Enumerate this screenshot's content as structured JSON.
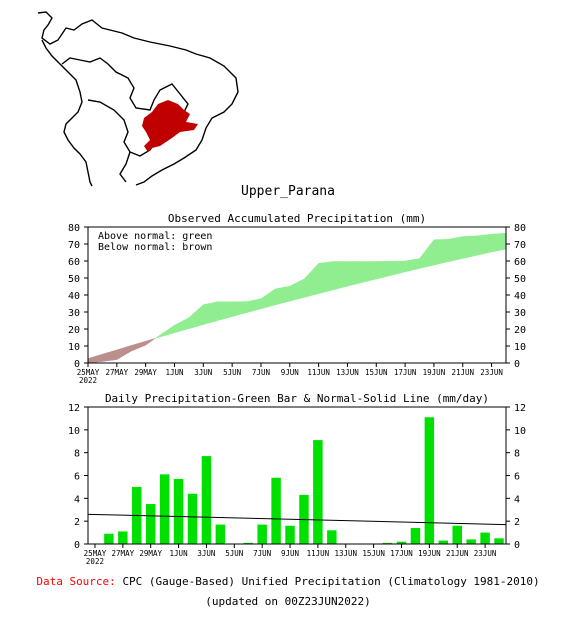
{
  "region_title": "Upper_Parana",
  "colors": {
    "above": "#90ee90",
    "below": "#bc8f8f",
    "bar": "#00e000",
    "map_region": "#c00000",
    "normal_line": "#000000"
  },
  "footer": {
    "source_label": "Data Source:",
    "source_text": "CPC (Gauge-Based) Unified Precipitation (Climatology 1981-2010)",
    "updated": "(updated on 00Z23JUN2022)"
  },
  "chart_data": [
    {
      "type": "area",
      "title": "Observed Accumulated Precipitation (mm)",
      "legend": [
        "Above normal: green",
        "Below normal: brown"
      ],
      "ylim": [
        0,
        80
      ],
      "yticks": [
        0,
        10,
        20,
        30,
        40,
        50,
        60,
        70,
        80
      ],
      "xticks": [
        "25MAY",
        "27MAY",
        "29MAY",
        "1JUN",
        "3JUN",
        "5JUN",
        "7JUN",
        "9JUN",
        "11JUN",
        "13JUN",
        "15JUN",
        "17JUN",
        "19JUN",
        "21JUN",
        "23JUN"
      ],
      "xtick_year": "2022",
      "dates": [
        "25MAY",
        "26MAY",
        "27MAY",
        "28MAY",
        "29MAY",
        "30MAY",
        "31MAY",
        "1JUN",
        "2JUN",
        "3JUN",
        "4JUN",
        "5JUN",
        "6JUN",
        "7JUN",
        "8JUN",
        "9JUN",
        "10JUN",
        "11JUN",
        "12JUN",
        "13JUN",
        "14JUN",
        "15JUN",
        "16JUN",
        "17JUN",
        "18JUN",
        "19JUN",
        "20JUN",
        "21JUN",
        "22JUN",
        "23JUN"
      ],
      "observed": [
        0,
        0.9,
        2.0,
        7.0,
        10.5,
        16.5,
        22.2,
        26.6,
        34.3,
        36.0,
        36.0,
        36.1,
        37.8,
        43.6,
        45.2,
        49.5,
        58.6,
        59.7,
        59.7,
        59.7,
        59.7,
        59.8,
        60.0,
        61.4,
        72.5,
        72.8,
        74.4,
        74.8,
        75.8,
        76.3
      ],
      "normal": [
        2.6,
        5.2,
        7.7,
        10.3,
        12.8,
        15.3,
        17.8,
        20.2,
        22.6,
        25.0,
        27.3,
        29.6,
        31.9,
        34.2,
        36.4,
        38.6,
        40.8,
        43.0,
        45.2,
        47.3,
        49.4,
        51.5,
        53.6,
        55.6,
        57.6,
        59.6,
        61.5,
        63.4,
        65.3,
        67.0
      ]
    },
    {
      "type": "bar",
      "title": "Daily Precipitation-Green Bar & Normal-Solid Line (mm/day)",
      "ylim": [
        0,
        12
      ],
      "yticks": [
        0,
        2,
        4,
        6,
        8,
        10,
        12
      ],
      "xticks": [
        "25MAY",
        "27MAY",
        "29MAY",
        "1JUN",
        "3JUN",
        "5JUN",
        "7JUN",
        "9JUN",
        "11JUN",
        "13JUN",
        "15JUN",
        "17JUN",
        "19JUN",
        "21JUN",
        "23JUN"
      ],
      "xtick_year": "2022",
      "categories": [
        "25MAY",
        "26MAY",
        "27MAY",
        "28MAY",
        "29MAY",
        "30MAY",
        "31MAY",
        "1JUN",
        "2JUN",
        "3JUN",
        "4JUN",
        "5JUN",
        "6JUN",
        "7JUN",
        "8JUN",
        "9JUN",
        "10JUN",
        "11JUN",
        "12JUN",
        "13JUN",
        "14JUN",
        "15JUN",
        "16JUN",
        "17JUN",
        "18JUN",
        "19JUN",
        "20JUN",
        "21JUN",
        "22JUN",
        "23JUN"
      ],
      "values": [
        0,
        0.9,
        1.1,
        5.0,
        3.5,
        6.1,
        5.7,
        4.4,
        7.7,
        1.7,
        0,
        0.1,
        1.7,
        5.8,
        1.6,
        4.3,
        9.1,
        1.2,
        0,
        0,
        0,
        0.1,
        0.2,
        1.4,
        11.1,
        0.3,
        1.6,
        0.4,
        1.0,
        0.5
      ],
      "normal_start": 2.6,
      "normal_end": 1.7
    }
  ]
}
